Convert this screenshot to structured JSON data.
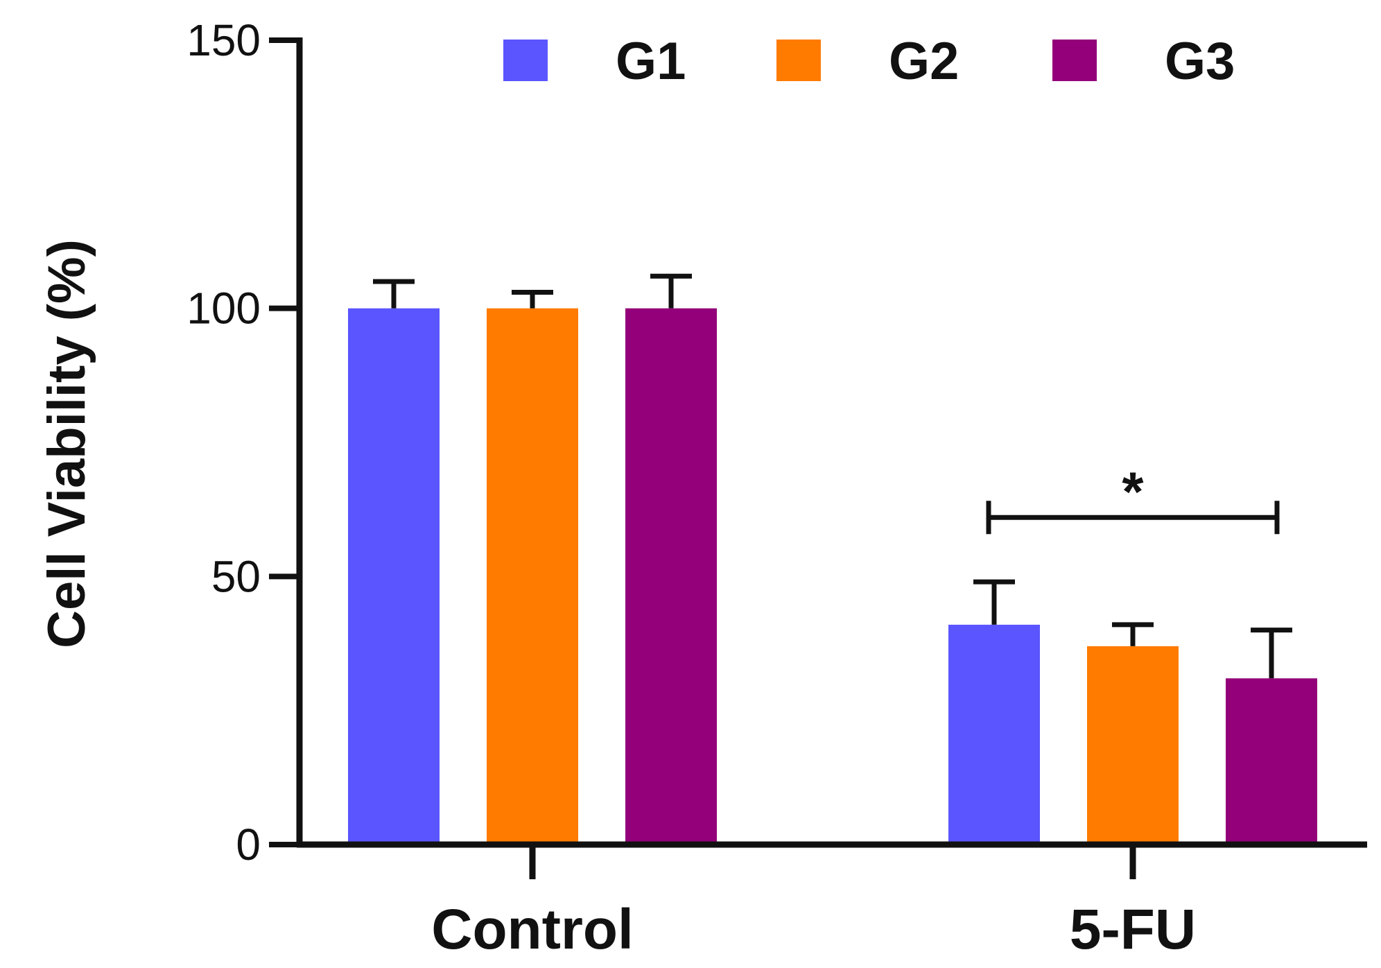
{
  "chart_data": {
    "type": "bar",
    "ylabel": "Cell Viability (%)",
    "xlabel": "",
    "title": "",
    "ylim": [
      0,
      150
    ],
    "yticks": [
      {
        "value": 0,
        "label": "0"
      },
      {
        "value": 50,
        "label": "50"
      },
      {
        "value": 100,
        "label": "100"
      },
      {
        "value": 150,
        "label": "150"
      }
    ],
    "categories": [
      "Control",
      "5-FU"
    ],
    "series": [
      {
        "name": "G1",
        "color": "#5a55ff",
        "values": [
          100,
          41
        ],
        "errors": [
          5,
          8
        ]
      },
      {
        "name": "G2",
        "color": "#ff7b00",
        "values": [
          100,
          37
        ],
        "errors": [
          3,
          4
        ]
      },
      {
        "name": "G3",
        "color": "#930079",
        "values": [
          100,
          31
        ],
        "errors": [
          6,
          9
        ]
      }
    ],
    "legend_position": "top-right",
    "significance": {
      "label": "*",
      "category": "5-FU",
      "from_series": "G1",
      "to_series": "G3",
      "y": 61
    }
  }
}
